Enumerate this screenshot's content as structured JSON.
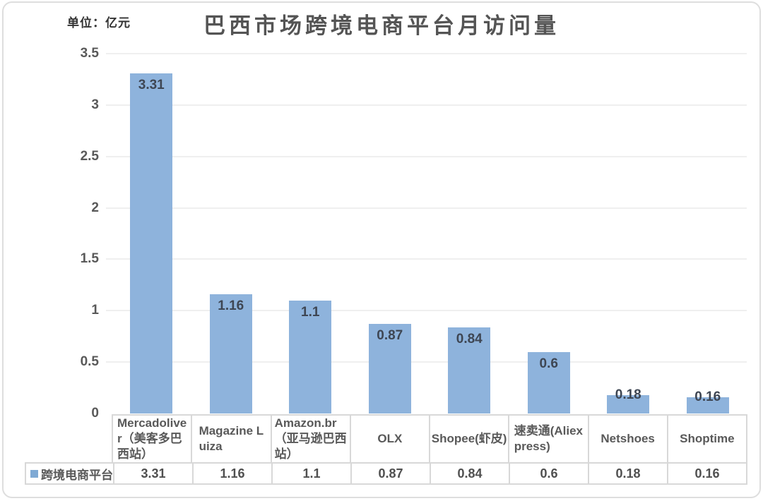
{
  "header": {
    "unit_label": "单位：亿元",
    "title": "巴西市场跨境电商平台月访问量"
  },
  "colors": {
    "bar": "#8EB3DC",
    "legend_marker": "#7FA9D4",
    "data_label": "#3E4653",
    "axis_text": "#595959",
    "grid_line": "#EFEFEF",
    "table_border": "#D8D8D8",
    "table_text": "#595959"
  },
  "y_axis": {
    "tick_labels": [
      "3.5",
      "3",
      "2.5",
      "2",
      "1.5",
      "1",
      "0.5",
      "0"
    ],
    "tick_values": [
      3.5,
      3,
      2.5,
      2,
      1.5,
      1,
      0.5,
      0
    ]
  },
  "legend": {
    "label": "跨境电商平台"
  },
  "chart_data": {
    "type": "bar",
    "title": "巴西市场跨境电商平台月访问量",
    "unit": "亿元",
    "categories": [
      "Mercadoliver（美客多巴西站）",
      "Magazine Luiza",
      "Amazon.br（亚马逊巴西站）",
      "OLX",
      "Shopee(虾皮)",
      "速卖通(Aliexpress)",
      "Netshoes",
      "Shoptime"
    ],
    "categories_display": [
      "Mercadolive\nr（美客多巴\n西站）",
      "Magazine L\nuiza",
      "Amazon.br\n（亚马逊巴西\n站）",
      "OLX",
      "Shopee(虾皮)",
      "速卖通(Aliex\npress)",
      "Netshoes",
      "Shoptime"
    ],
    "series": [
      {
        "name": "跨境电商平台",
        "values": [
          3.31,
          1.16,
          1.1,
          0.87,
          0.84,
          0.6,
          0.18,
          0.16
        ]
      }
    ],
    "value_labels": [
      "3.31",
      "1.16",
      "1.1",
      "0.87",
      "0.84",
      "0.6",
      "0.18",
      "0.16"
    ],
    "ylim": [
      0,
      3.5
    ],
    "xlabel": "",
    "ylabel": "",
    "grid": true,
    "legend_position": "bottom-table"
  }
}
